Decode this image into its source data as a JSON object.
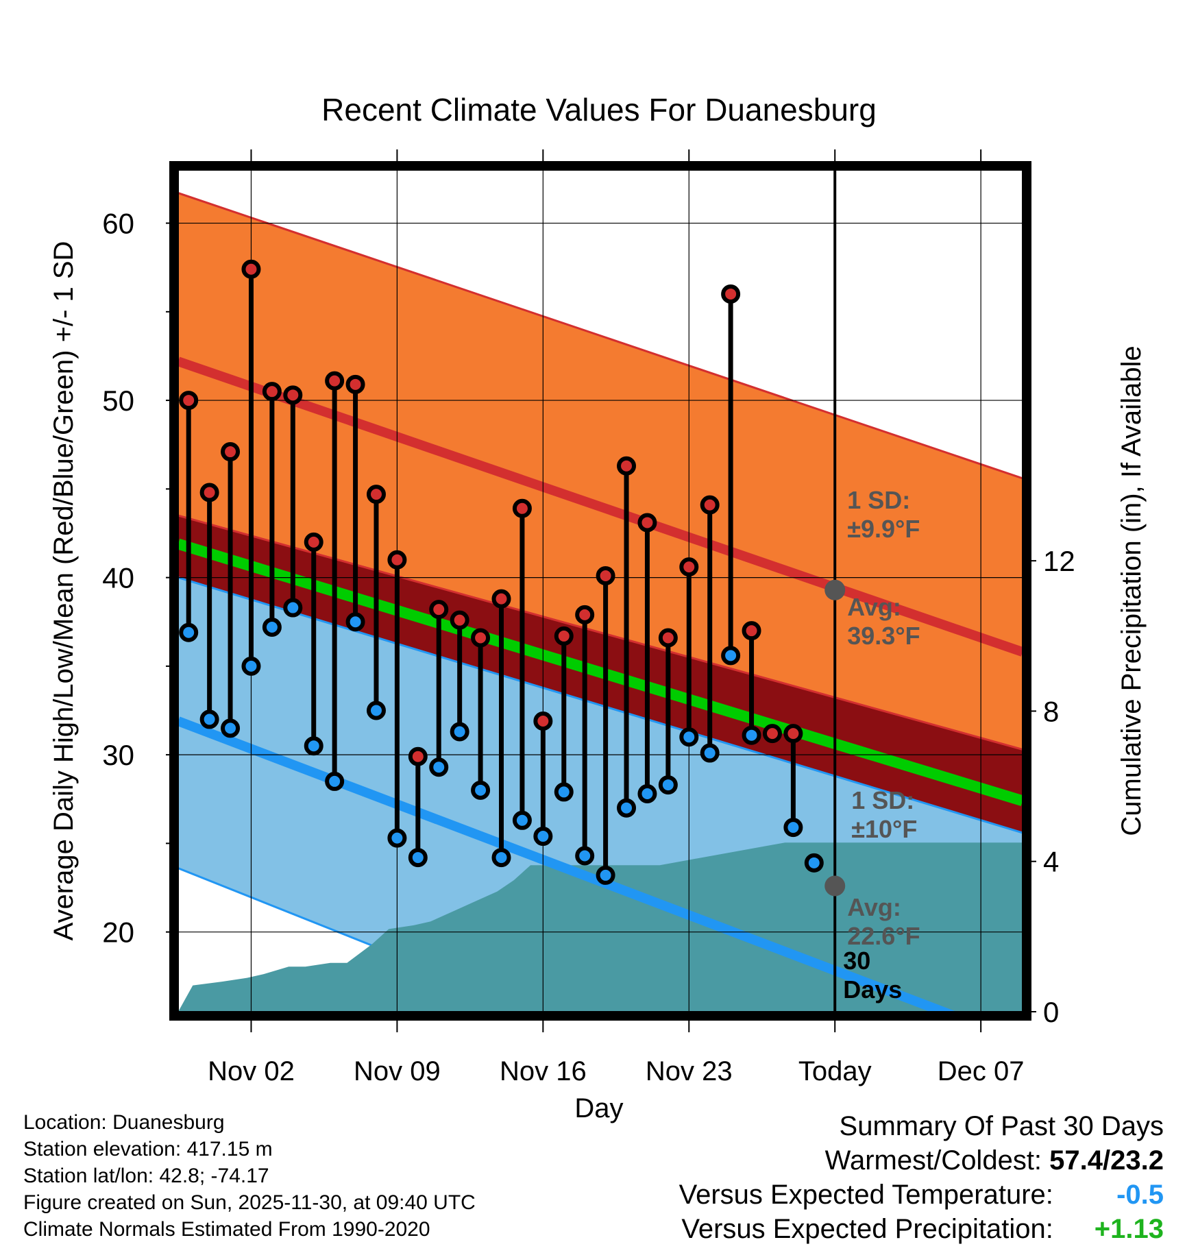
{
  "colors": {
    "high_band": "#F47B30",
    "high_line": "#D32F2F",
    "low_band": "#82C1E6",
    "low_line": "#2196F3",
    "mean_line": "#00CC00",
    "overlap": "#8B0E12",
    "precip": "#4A9AA3",
    "annotation": "#555555",
    "precip_anomaly": "#1EB31E",
    "temp_anomaly": "#2196F3"
  },
  "chart_data": {
    "type": "line",
    "title": "Recent Climate Values For Duanesburg",
    "xlabel": "Day",
    "ylabel_left": "Average Daily High/Low/Mean (Red/Blue/Green) +/- 1 SD",
    "ylabel_right": "Cumulative Precipitation (in), If Available",
    "x_tick_labels": [
      "Nov 02",
      "Nov 09",
      "Nov 16",
      "Nov 23",
      "Today",
      "Dec 07"
    ],
    "x_tick_days": [
      2,
      9,
      16,
      23,
      30,
      37
    ],
    "xlim": [
      -1.5,
      39
    ],
    "ylim_left": [
      15.5,
      63
    ],
    "yticks_left": [
      20,
      30,
      40,
      50,
      60
    ],
    "ylim_right": [
      0,
      22.4
    ],
    "yticks_right": [
      0,
      4,
      8,
      12
    ],
    "today_day": 30,
    "normal_high": {
      "days": [
        -1.5,
        39
      ],
      "values": [
        52.2,
        35.8
      ]
    },
    "normal_high_upper": {
      "days": [
        -1.5,
        39
      ],
      "values": [
        61.7,
        45.6
      ]
    },
    "normal_high_lower": {
      "days": [
        -1.5,
        39
      ],
      "values": [
        43.5,
        30.3
      ]
    },
    "normal_low": {
      "days": [
        -1.5,
        39
      ],
      "values": [
        31.9,
        13.8
      ]
    },
    "normal_low_upper": {
      "days": [
        -1.5,
        39
      ],
      "values": [
        40.0,
        25.6
      ]
    },
    "normal_low_lower": {
      "days": [
        -1.5,
        39
      ],
      "values": [
        23.6,
        4.6
      ]
    },
    "normal_mean": {
      "days": [
        -1.5,
        39
      ],
      "values": [
        41.9,
        27.4
      ]
    },
    "daily": {
      "days": [
        -1,
        0,
        1,
        2,
        3,
        4,
        5,
        6,
        7,
        8,
        9,
        10,
        11,
        12,
        13,
        14,
        15,
        16,
        17,
        18,
        19,
        20,
        21,
        22,
        23,
        24,
        25,
        26,
        27,
        28,
        29
      ],
      "high": [
        50.0,
        44.8,
        47.1,
        57.4,
        50.5,
        50.3,
        42.0,
        51.1,
        50.9,
        44.7,
        41.0,
        29.9,
        38.2,
        37.6,
        36.6,
        38.8,
        43.9,
        31.9,
        36.7,
        37.9,
        40.1,
        46.3,
        43.1,
        36.6,
        40.6,
        44.1,
        56.0,
        37.0,
        31.2,
        31.2,
        null
      ],
      "low": [
        36.9,
        32.0,
        31.5,
        35.0,
        37.2,
        38.3,
        30.5,
        28.5,
        37.5,
        32.5,
        25.3,
        24.2,
        29.3,
        31.3,
        28.0,
        24.2,
        26.3,
        25.4,
        27.9,
        24.3,
        23.2,
        27.0,
        27.8,
        28.3,
        31.0,
        30.1,
        35.6,
        31.1,
        null,
        25.9,
        23.9
      ]
    },
    "precip_cumulative": {
      "days": [
        -1.5,
        -0.8,
        0.6,
        1.8,
        2.6,
        3.8,
        4.6,
        5.8,
        6.6,
        7.8,
        8.6,
        9.8,
        10.6,
        11.8,
        12.6,
        13.8,
        14.6,
        15.4,
        16.4,
        17.6,
        18.6,
        19.6,
        20.6,
        21.6,
        22.6,
        23.6,
        24.6,
        25.6,
        26.6,
        27.6,
        28.6,
        39
      ],
      "values": [
        0.0,
        0.7,
        0.8,
        0.9,
        1.0,
        1.2,
        1.2,
        1.3,
        1.3,
        1.8,
        2.2,
        2.3,
        2.4,
        2.7,
        2.9,
        3.2,
        3.5,
        3.9,
        3.9,
        3.9,
        3.9,
        3.9,
        3.9,
        3.9,
        4.0,
        4.1,
        4.2,
        4.3,
        4.4,
        4.5,
        4.5,
        4.5
      ]
    },
    "markers": [
      {
        "day": 30,
        "value": 39.3
      },
      {
        "day": 30,
        "value": 22.6
      }
    ],
    "annotations": {
      "high_sd": [
        "1 SD:",
        "±9.9°F"
      ],
      "high_avg": [
        "Avg:",
        "39.3°F"
      ],
      "low_sd": [
        "1 SD:",
        "±10°F"
      ],
      "low_avg": [
        "Avg:",
        "22.6°F"
      ],
      "period": [
        "30",
        "Days"
      ]
    }
  },
  "info": {
    "location": "Location: Duanesburg",
    "elevation": "Station elevation: 417.15 m",
    "latlon": "Station lat/lon: 42.8; -74.17",
    "created": "Figure created on Sun, 2025-11-30, at 09:40 UTC",
    "normals": "Climate Normals Estimated From 1990-2020"
  },
  "summary": {
    "title": "Summary Of Past 30 Days",
    "warmest_label": "Warmest/Coldest:",
    "warmest_value": "57.4/23.2",
    "temp_label": "Versus Expected Temperature:",
    "temp_value": "-0.5",
    "precip_label": "Versus Expected Precipitation:",
    "precip_value": "+1.13"
  }
}
